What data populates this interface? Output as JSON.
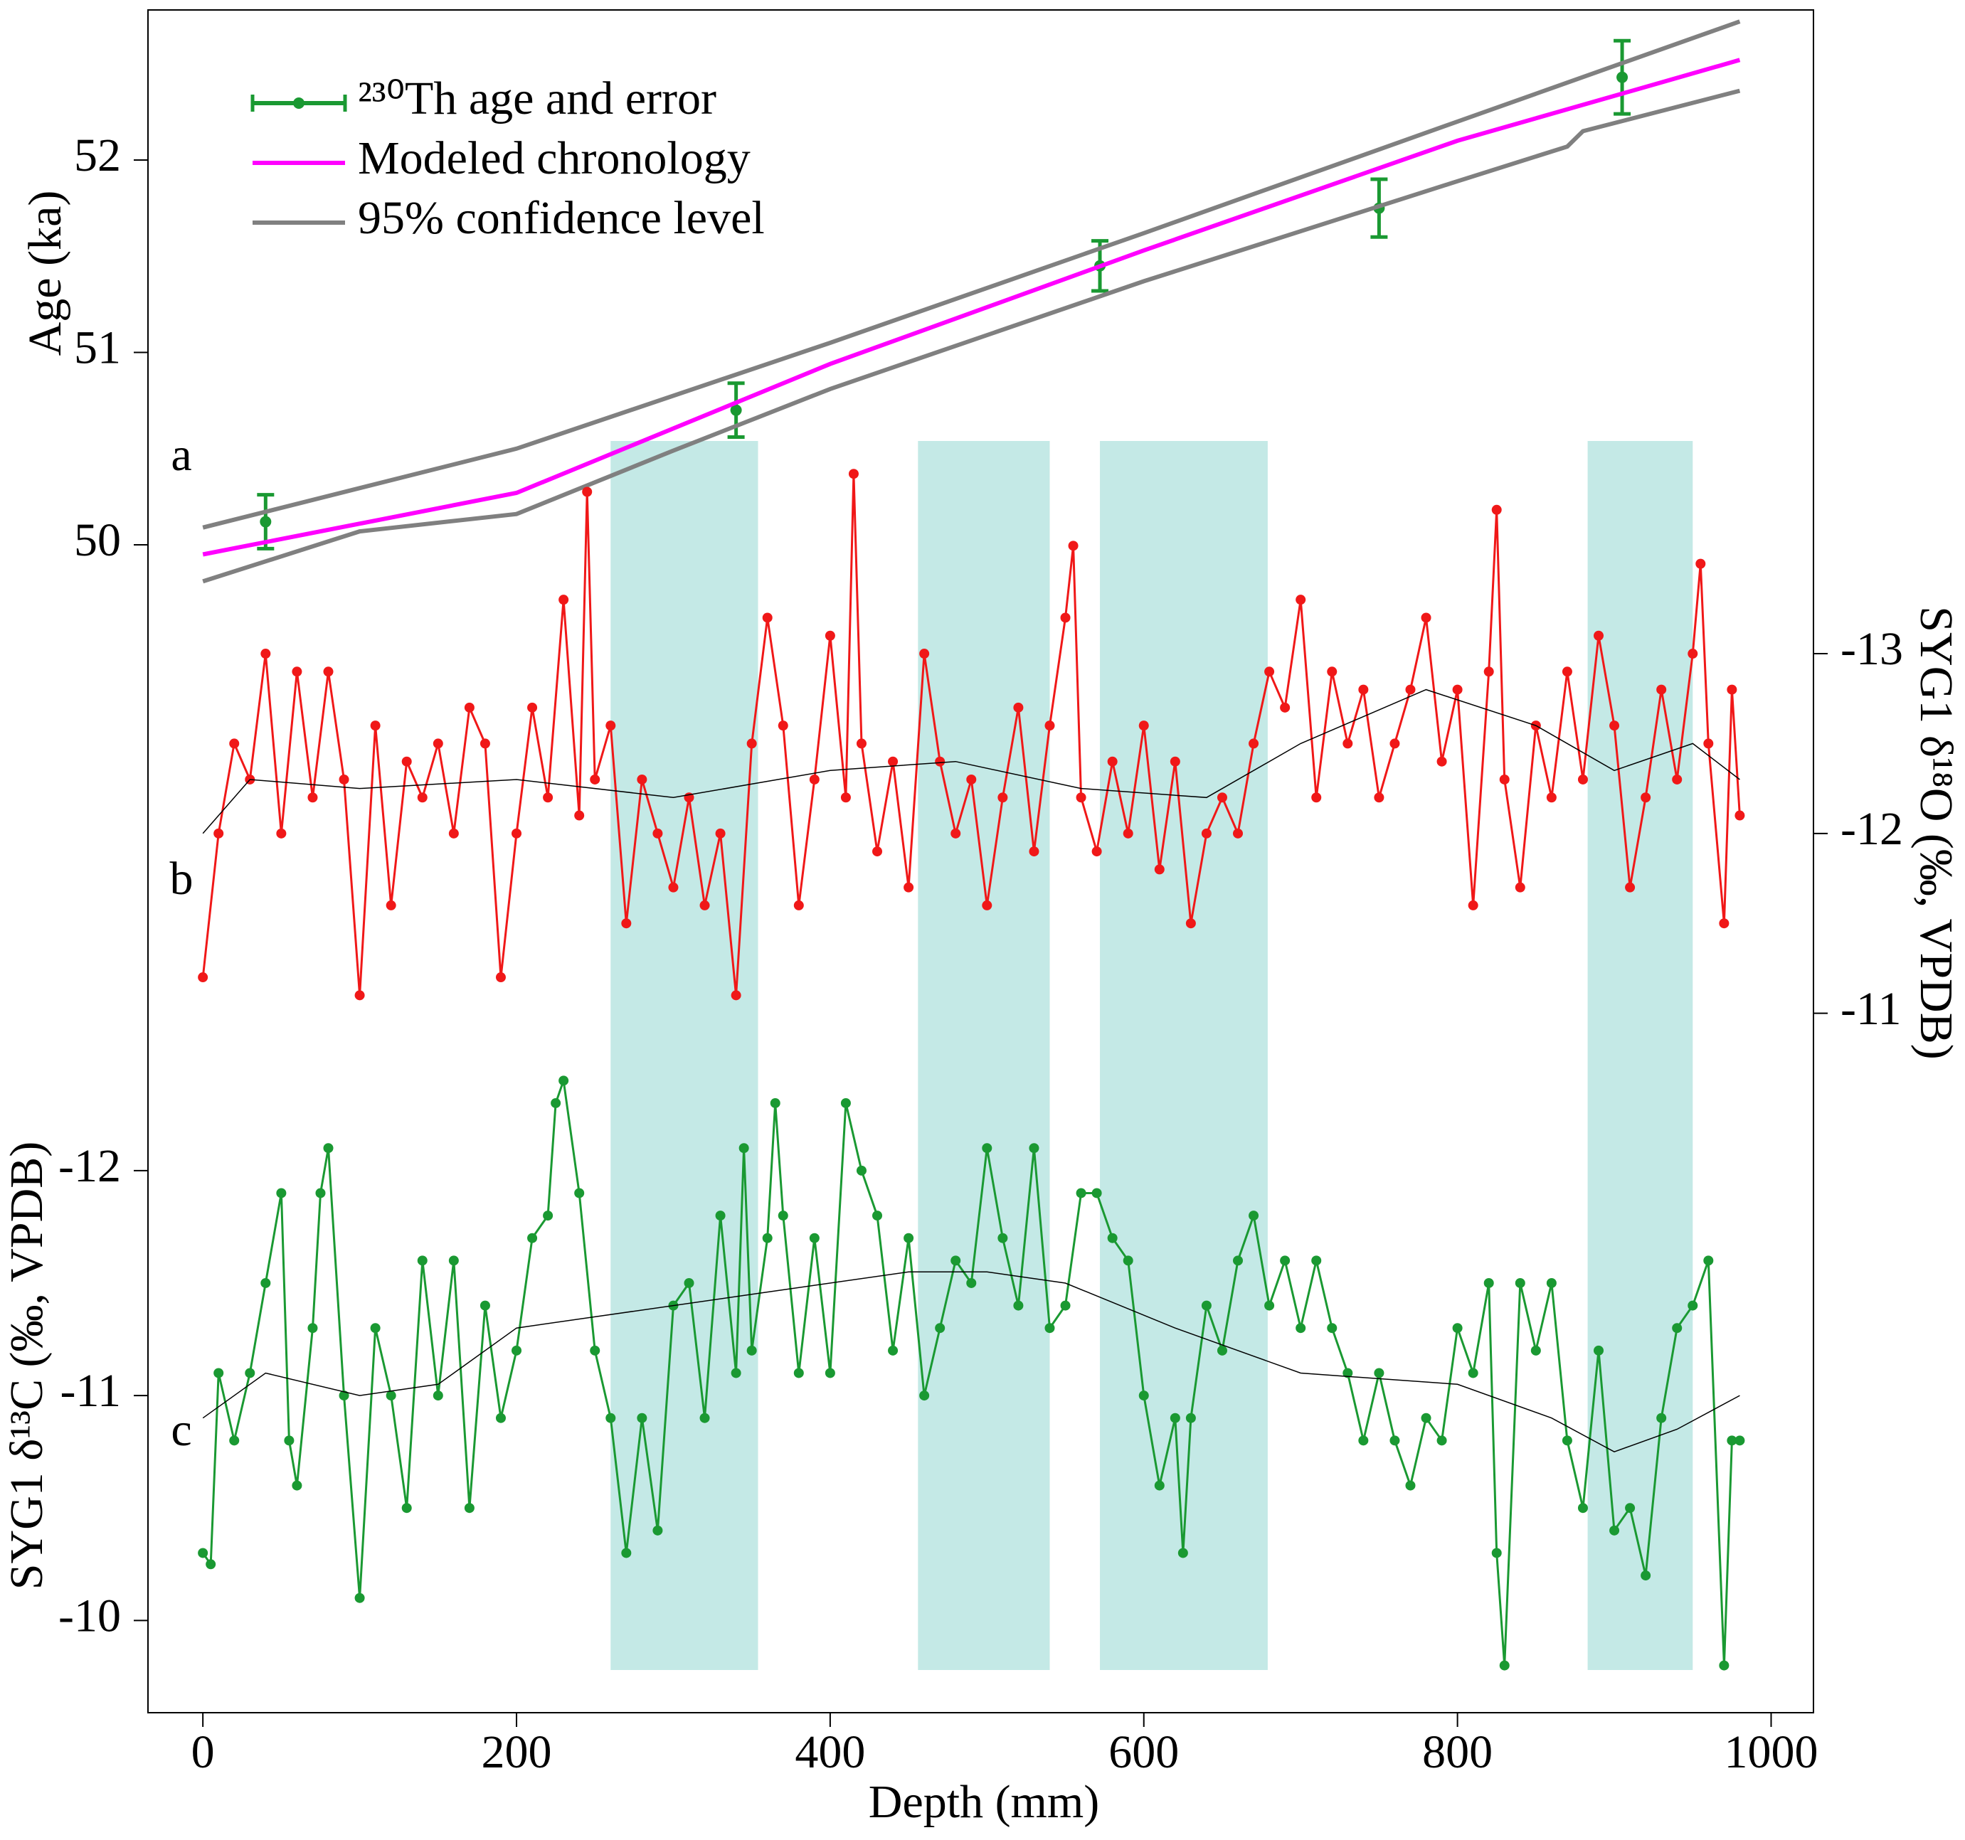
{
  "chart_data": [
    {
      "type": "line",
      "panel_label": "a",
      "ylabel": "Age (ka)",
      "axis_side": "left",
      "xlim": [
        -35,
        1027
      ],
      "ylim": [
        43.93,
        52.78
      ],
      "yticks": [
        50,
        51,
        52
      ],
      "legend": "upper left",
      "series": [
        {
          "name": "²³⁰Th age and error",
          "color": "#1a9932",
          "x": [
            40,
            340,
            572,
            750,
            905
          ],
          "values": [
            50.12,
            50.7,
            51.45,
            51.75,
            52.43
          ],
          "errors": [
            0.14,
            0.14,
            0.13,
            0.15,
            0.19
          ]
        },
        {
          "name": "Modeled chronology",
          "color": "#ff00ff",
          "x": [
            0,
            200,
            400,
            600,
            800,
            980
          ],
          "values": [
            49.95,
            50.27,
            50.94,
            51.53,
            52.1,
            52.52
          ]
        },
        {
          "name": "95% confidence level",
          "color": "#808080",
          "x": [
            0,
            200,
            400,
            600,
            800,
            980
          ],
          "values": [
            50.09,
            50.5,
            51.05,
            51.62,
            52.2,
            52.72
          ]
        },
        {
          "color": "#808080",
          "x": [
            0,
            100,
            200,
            300,
            400,
            600,
            800,
            870,
            880,
            980
          ],
          "values": [
            49.81,
            50.07,
            50.16,
            50.49,
            50.81,
            51.37,
            51.89,
            52.07,
            52.15,
            52.36
          ]
        }
      ]
    },
    {
      "type": "line",
      "panel_label": "b",
      "ylabel": "SYG1 δ¹⁸O (‰, VPDB)",
      "axis_side": "right",
      "xlim": [
        -35,
        1027
      ],
      "ylim": [
        -7.11,
        -16.58
      ],
      "yticks": [
        -13,
        -12,
        -11
      ],
      "series": [
        {
          "color": "#f01818",
          "markers": true,
          "x": [
            0,
            10,
            20,
            30,
            40,
            50,
            60,
            70,
            80,
            90,
            100,
            110,
            120,
            130,
            140,
            150,
            160,
            170,
            180,
            190,
            200,
            210,
            220,
            230,
            240,
            245,
            250,
            260,
            270,
            280,
            290,
            300,
            310,
            320,
            330,
            340,
            350,
            360,
            370,
            380,
            390,
            400,
            410,
            415,
            420,
            430,
            440,
            450,
            460,
            470,
            480,
            490,
            500,
            510,
            520,
            530,
            540,
            550,
            555,
            560,
            570,
            580,
            590,
            600,
            610,
            620,
            630,
            640,
            650,
            660,
            670,
            680,
            690,
            700,
            710,
            720,
            730,
            740,
            750,
            760,
            770,
            780,
            790,
            800,
            810,
            820,
            825,
            830,
            840,
            850,
            860,
            870,
            880,
            890,
            900,
            910,
            920,
            930,
            940,
            950,
            955,
            960,
            970,
            975,
            980
          ],
          "values": [
            -11.2,
            -12.0,
            -12.5,
            -12.3,
            -13.0,
            -12.0,
            -12.9,
            -12.2,
            -12.9,
            -12.3,
            -11.1,
            -12.6,
            -11.6,
            -12.4,
            -12.2,
            -12.5,
            -12.0,
            -12.7,
            -12.5,
            -11.2,
            -12.0,
            -12.7,
            -12.2,
            -13.3,
            -12.1,
            -13.9,
            -12.3,
            -12.6,
            -11.5,
            -12.3,
            -12.0,
            -11.7,
            -12.2,
            -11.6,
            -12.0,
            -11.1,
            -12.5,
            -13.2,
            -12.6,
            -11.6,
            -12.3,
            -13.1,
            -12.2,
            -14.0,
            -12.5,
            -11.9,
            -12.4,
            -11.7,
            -13.0,
            -12.4,
            -12.0,
            -12.3,
            -11.6,
            -12.2,
            -12.7,
            -11.9,
            -12.6,
            -13.2,
            -13.6,
            -12.2,
            -11.9,
            -12.4,
            -12.0,
            -12.6,
            -11.8,
            -12.4,
            -11.5,
            -12.0,
            -12.2,
            -12.0,
            -12.5,
            -12.9,
            -12.7,
            -13.3,
            -12.2,
            -12.9,
            -12.5,
            -12.8,
            -12.2,
            -12.5,
            -12.8,
            -13.2,
            -12.4,
            -12.8,
            -11.6,
            -12.9,
            -13.8,
            -12.3,
            -11.7,
            -12.6,
            -12.2,
            -12.9,
            -12.3,
            -13.1,
            -12.6,
            -11.7,
            -12.2,
            -12.8,
            -12.3,
            -13.0,
            -13.5,
            -12.5,
            -11.5,
            -12.8,
            -12.1
          ]
        },
        {
          "color": "#000000",
          "x": [
            0,
            30,
            100,
            200,
            300,
            400,
            480,
            560,
            640,
            700,
            780,
            850,
            900,
            950,
            980
          ],
          "values": [
            -12.0,
            -12.3,
            -12.25,
            -12.3,
            -12.2,
            -12.35,
            -12.4,
            -12.25,
            -12.2,
            -12.5,
            -12.8,
            -12.6,
            -12.35,
            -12.5,
            -12.3
          ]
        }
      ]
    },
    {
      "type": "line",
      "panel_label": "c",
      "ylabel": "SYG1 δ¹³C (‰, VPDB)",
      "axis_side": "left",
      "xlabel": "Depth (mm)",
      "xlim": [
        -35,
        1027
      ],
      "xticks": [
        0,
        200,
        400,
        600,
        800,
        1000
      ],
      "ylim": [
        -9.59,
        -17.16
      ],
      "yticks": [
        -12,
        -11,
        -10
      ],
      "bands": [
        [
          260,
          354
        ],
        [
          456,
          540
        ],
        [
          572,
          679
        ],
        [
          883,
          950
        ]
      ],
      "band_color": "#c4e9e6",
      "series": [
        {
          "color": "#1a9932",
          "markers": true,
          "x": [
            0,
            5,
            10,
            20,
            30,
            40,
            50,
            55,
            60,
            70,
            75,
            80,
            90,
            100,
            110,
            120,
            130,
            140,
            150,
            160,
            170,
            180,
            190,
            200,
            210,
            220,
            225,
            230,
            240,
            250,
            260,
            270,
            280,
            290,
            300,
            310,
            320,
            330,
            340,
            345,
            350,
            360,
            365,
            370,
            380,
            390,
            400,
            410,
            420,
            430,
            440,
            450,
            460,
            470,
            480,
            490,
            500,
            510,
            520,
            530,
            540,
            550,
            560,
            570,
            580,
            590,
            600,
            610,
            620,
            625,
            630,
            640,
            650,
            660,
            670,
            680,
            690,
            700,
            710,
            720,
            730,
            740,
            750,
            760,
            770,
            780,
            790,
            800,
            810,
            820,
            825,
            830,
            840,
            850,
            860,
            870,
            880,
            890,
            900,
            910,
            920,
            930,
            940,
            950,
            960,
            970,
            975,
            980
          ],
          "values": [
            -10.3,
            -10.25,
            -11.1,
            -10.8,
            -11.1,
            -11.5,
            -11.9,
            -10.8,
            -10.6,
            -11.3,
            -11.9,
            -12.1,
            -11.0,
            -10.1,
            -11.3,
            -11.0,
            -10.5,
            -11.6,
            -11.0,
            -11.6,
            -10.5,
            -11.4,
            -10.9,
            -11.2,
            -11.7,
            -11.8,
            -12.3,
            -12.4,
            -11.9,
            -11.2,
            -10.9,
            -10.3,
            -10.9,
            -10.4,
            -11.4,
            -11.5,
            -10.9,
            -11.8,
            -11.1,
            -12.1,
            -11.2,
            -11.7,
            -12.3,
            -11.8,
            -11.1,
            -11.7,
            -11.1,
            -12.3,
            -12.0,
            -11.8,
            -11.2,
            -11.7,
            -11.0,
            -11.3,
            -11.6,
            -11.5,
            -12.1,
            -11.7,
            -11.4,
            -12.1,
            -11.3,
            -11.4,
            -11.9,
            -11.9,
            -11.7,
            -11.6,
            -11.0,
            -10.6,
            -10.9,
            -10.3,
            -10.9,
            -11.4,
            -11.2,
            -11.6,
            -11.8,
            -11.4,
            -11.6,
            -11.3,
            -11.6,
            -11.3,
            -11.1,
            -10.8,
            -11.1,
            -10.8,
            -10.6,
            -10.9,
            -10.8,
            -11.3,
            -11.1,
            -11.5,
            -10.3,
            -9.8,
            -11.5,
            -11.2,
            -11.5,
            -10.8,
            -10.5,
            -11.2,
            -10.4,
            -10.5,
            -10.2,
            -10.9,
            -11.3,
            -11.4,
            -11.6,
            -9.8,
            -10.8,
            -10.8
          ]
        },
        {
          "color": "#000000",
          "x": [
            0,
            40,
            100,
            150,
            200,
            250,
            350,
            450,
            500,
            550,
            620,
            700,
            800,
            860,
            900,
            940,
            980
          ],
          "values": [
            -10.9,
            -11.1,
            -11.0,
            -11.05,
            -11.3,
            -11.35,
            -11.45,
            -11.55,
            -11.55,
            -11.5,
            -11.3,
            -11.1,
            -11.05,
            -10.9,
            -10.75,
            -10.85,
            -11.0
          ]
        }
      ]
    }
  ]
}
